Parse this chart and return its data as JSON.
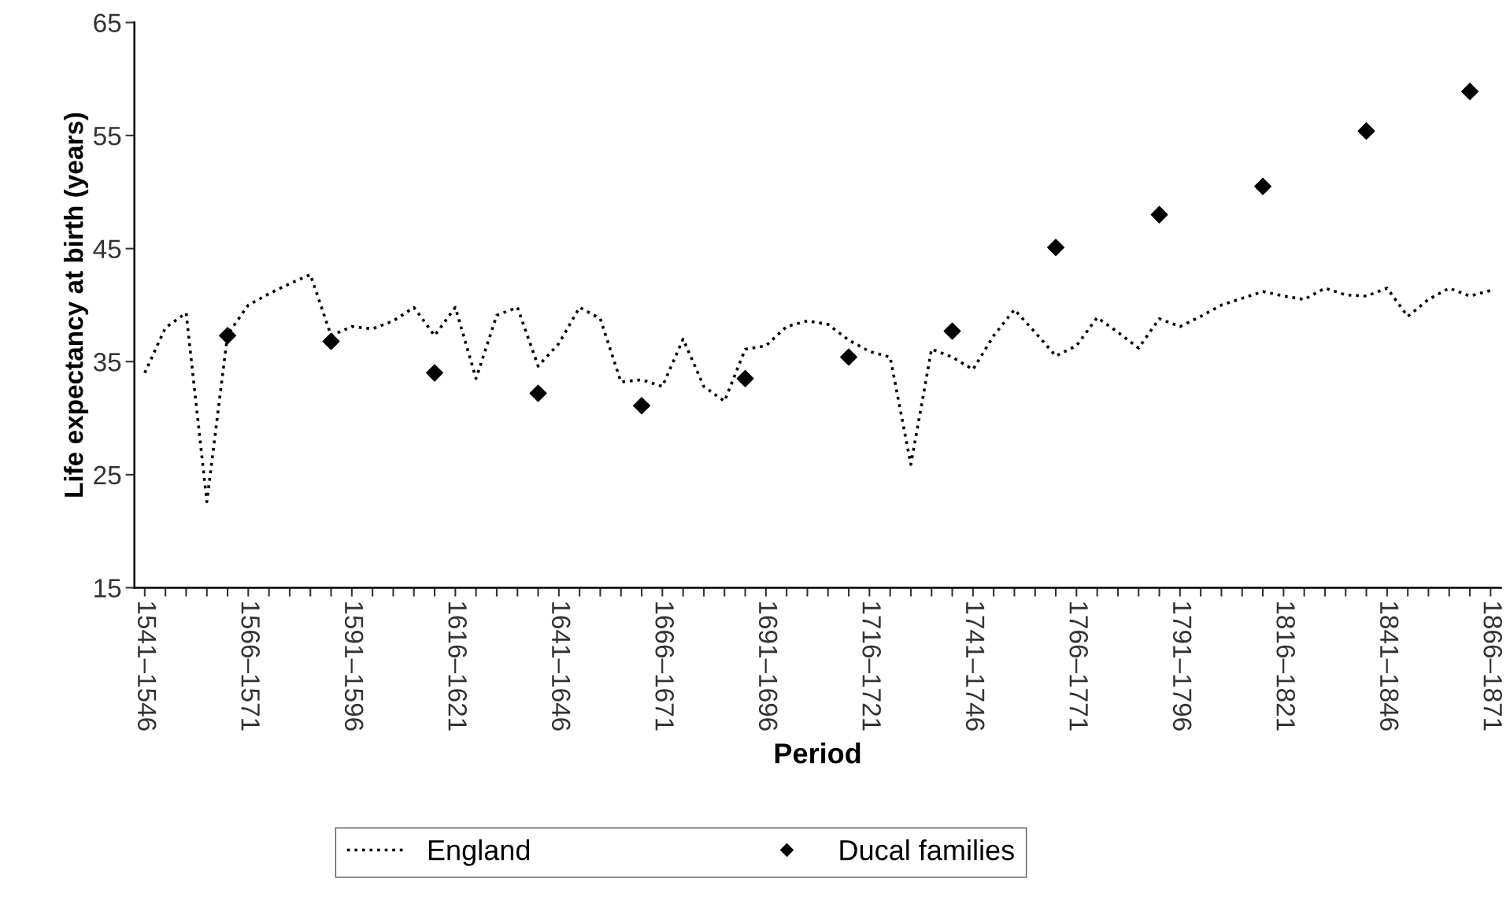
{
  "chart_data": {
    "type": "line",
    "xlabel": "Period",
    "ylabel": "Life expectancy at birth (years)",
    "categories": [
      "1541–1546",
      null,
      null,
      null,
      null,
      "1566–1571",
      null,
      null,
      null,
      null,
      "1591–1596",
      null,
      null,
      null,
      null,
      "1616–1621",
      null,
      null,
      null,
      null,
      "1641–1646",
      null,
      null,
      null,
      null,
      "1666–1671",
      null,
      null,
      null,
      null,
      "1691–1696",
      null,
      null,
      null,
      null,
      "1716–1721",
      null,
      null,
      null,
      null,
      "1741–1746",
      null,
      null,
      null,
      null,
      "1766–1771",
      null,
      null,
      null,
      null,
      "1791–1796",
      null,
      null,
      null,
      null,
      "1816–1821",
      null,
      null,
      null,
      null,
      "1841–1846",
      null,
      null,
      null,
      null,
      "1866–1871"
    ],
    "series": [
      {
        "name": "England",
        "color": "#000000",
        "line_style": "dotted",
        "marker": "none",
        "values": [
          34.0,
          38.0,
          39.3,
          22.6,
          37.4,
          40.0,
          41.0,
          41.9,
          42.7,
          37.3,
          38.1,
          37.9,
          38.6,
          39.8,
          37.3,
          39.8,
          33.5,
          39.1,
          39.8,
          34.6,
          36.6,
          39.8,
          38.8,
          33.2,
          33.4,
          32.8,
          37.0,
          32.8,
          31.5,
          36.1,
          36.4,
          38.1,
          38.6,
          38.3,
          36.9,
          35.9,
          35.4,
          25.9,
          36.1,
          35.4,
          34.3,
          37.3,
          39.6,
          37.6,
          35.5,
          36.4,
          38.9,
          37.6,
          36.2,
          38.8,
          38.1,
          39.0,
          40.0,
          40.6,
          41.2,
          40.8,
          40.5,
          41.5,
          40.9,
          40.8,
          41.5,
          39.0,
          40.5,
          41.5,
          40.8,
          41.3
        ]
      },
      {
        "name": "Ducal families",
        "type": "scatter",
        "color": "#000000",
        "marker": "diamond",
        "values": [
          null,
          null,
          null,
          null,
          37.3,
          null,
          null,
          null,
          null,
          36.8,
          null,
          null,
          null,
          null,
          34.0,
          null,
          null,
          null,
          null,
          32.2,
          null,
          null,
          null,
          null,
          31.1,
          null,
          null,
          null,
          null,
          33.5,
          null,
          null,
          null,
          null,
          35.4,
          null,
          null,
          null,
          null,
          37.7,
          null,
          null,
          null,
          null,
          45.1,
          null,
          null,
          null,
          null,
          48.0,
          null,
          null,
          null,
          null,
          50.5,
          null,
          null,
          null,
          null,
          55.4,
          null,
          null,
          null,
          null,
          58.9,
          null
        ]
      }
    ],
    "ylim": [
      15,
      65
    ],
    "yticks": [
      15,
      25,
      35,
      45,
      55,
      65
    ],
    "grid": false,
    "legend": "bottom"
  }
}
